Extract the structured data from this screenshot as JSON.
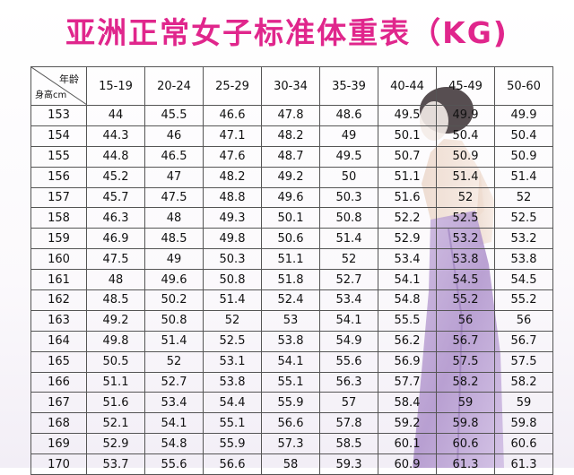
{
  "title": "亚洲正常女子标准体重表（KG)",
  "table": {
    "corner_age": "年龄",
    "corner_height": "身高cm",
    "age_columns": [
      "15-19",
      "20-24",
      "25-29",
      "30-34",
      "35-39",
      "40-44",
      "45-49",
      "50-60"
    ],
    "rows": [
      {
        "height": "153",
        "values": [
          "44",
          "45.5",
          "46.6",
          "47.8",
          "48.6",
          "49.5",
          "49.9",
          "49.9"
        ]
      },
      {
        "height": "154",
        "values": [
          "44.3",
          "46",
          "47.1",
          "48.2",
          "49",
          "50.1",
          "50.4",
          "50.4"
        ]
      },
      {
        "height": "155",
        "values": [
          "44.8",
          "46.5",
          "47.6",
          "48.7",
          "49.5",
          "50.7",
          "50.9",
          "50.9"
        ]
      },
      {
        "height": "156",
        "values": [
          "45.2",
          "47",
          "48.2",
          "49.2",
          "50",
          "51.1",
          "51.4",
          "51.4"
        ]
      },
      {
        "height": "157",
        "values": [
          "45.7",
          "47.5",
          "48.8",
          "49.6",
          "50.3",
          "51.6",
          "52",
          "52"
        ]
      },
      {
        "height": "158",
        "values": [
          "46.3",
          "48",
          "49.3",
          "50.1",
          "50.8",
          "52.2",
          "52.5",
          "52.5"
        ]
      },
      {
        "height": "159",
        "values": [
          "46.9",
          "48.5",
          "49.8",
          "50.6",
          "51.4",
          "52.9",
          "53.2",
          "53.2"
        ]
      },
      {
        "height": "160",
        "values": [
          "47.5",
          "49",
          "50.3",
          "51.1",
          "52",
          "53.4",
          "53.8",
          "53.8"
        ]
      },
      {
        "height": "161",
        "values": [
          "48",
          "49.6",
          "50.8",
          "51.8",
          "52.7",
          "54.1",
          "54.5",
          "54.5"
        ]
      },
      {
        "height": "162",
        "values": [
          "48.5",
          "50.2",
          "51.4",
          "52.4",
          "53.4",
          "54.8",
          "55.2",
          "55.2"
        ]
      },
      {
        "height": "163",
        "values": [
          "49.2",
          "50.8",
          "52",
          "53",
          "54.1",
          "55.5",
          "56",
          "56"
        ]
      },
      {
        "height": "164",
        "values": [
          "49.8",
          "51.4",
          "52.5",
          "53.8",
          "54.9",
          "56.2",
          "56.7",
          "56.7"
        ]
      },
      {
        "height": "165",
        "values": [
          "50.5",
          "52",
          "53.1",
          "54.1",
          "55.6",
          "56.9",
          "57.5",
          "57.5"
        ]
      },
      {
        "height": "166",
        "values": [
          "51.1",
          "52.7",
          "53.8",
          "55.1",
          "56.3",
          "57.7",
          "58.2",
          "58.2"
        ]
      },
      {
        "height": "167",
        "values": [
          "51.6",
          "53.4",
          "54.4",
          "55.9",
          "57",
          "58.4",
          "59",
          "59"
        ]
      },
      {
        "height": "168",
        "values": [
          "52.1",
          "54.1",
          "55.1",
          "56.6",
          "57.8",
          "59.2",
          "59.8",
          "59.8"
        ]
      },
      {
        "height": "169",
        "values": [
          "52.9",
          "54.8",
          "55.9",
          "57.3",
          "58.5",
          "60.1",
          "60.6",
          "60.6"
        ]
      },
      {
        "height": "170",
        "values": [
          "53.7",
          "55.6",
          "56.6",
          "58",
          "59.3",
          "60.9",
          "61.3",
          "61.3"
        ]
      }
    ]
  }
}
